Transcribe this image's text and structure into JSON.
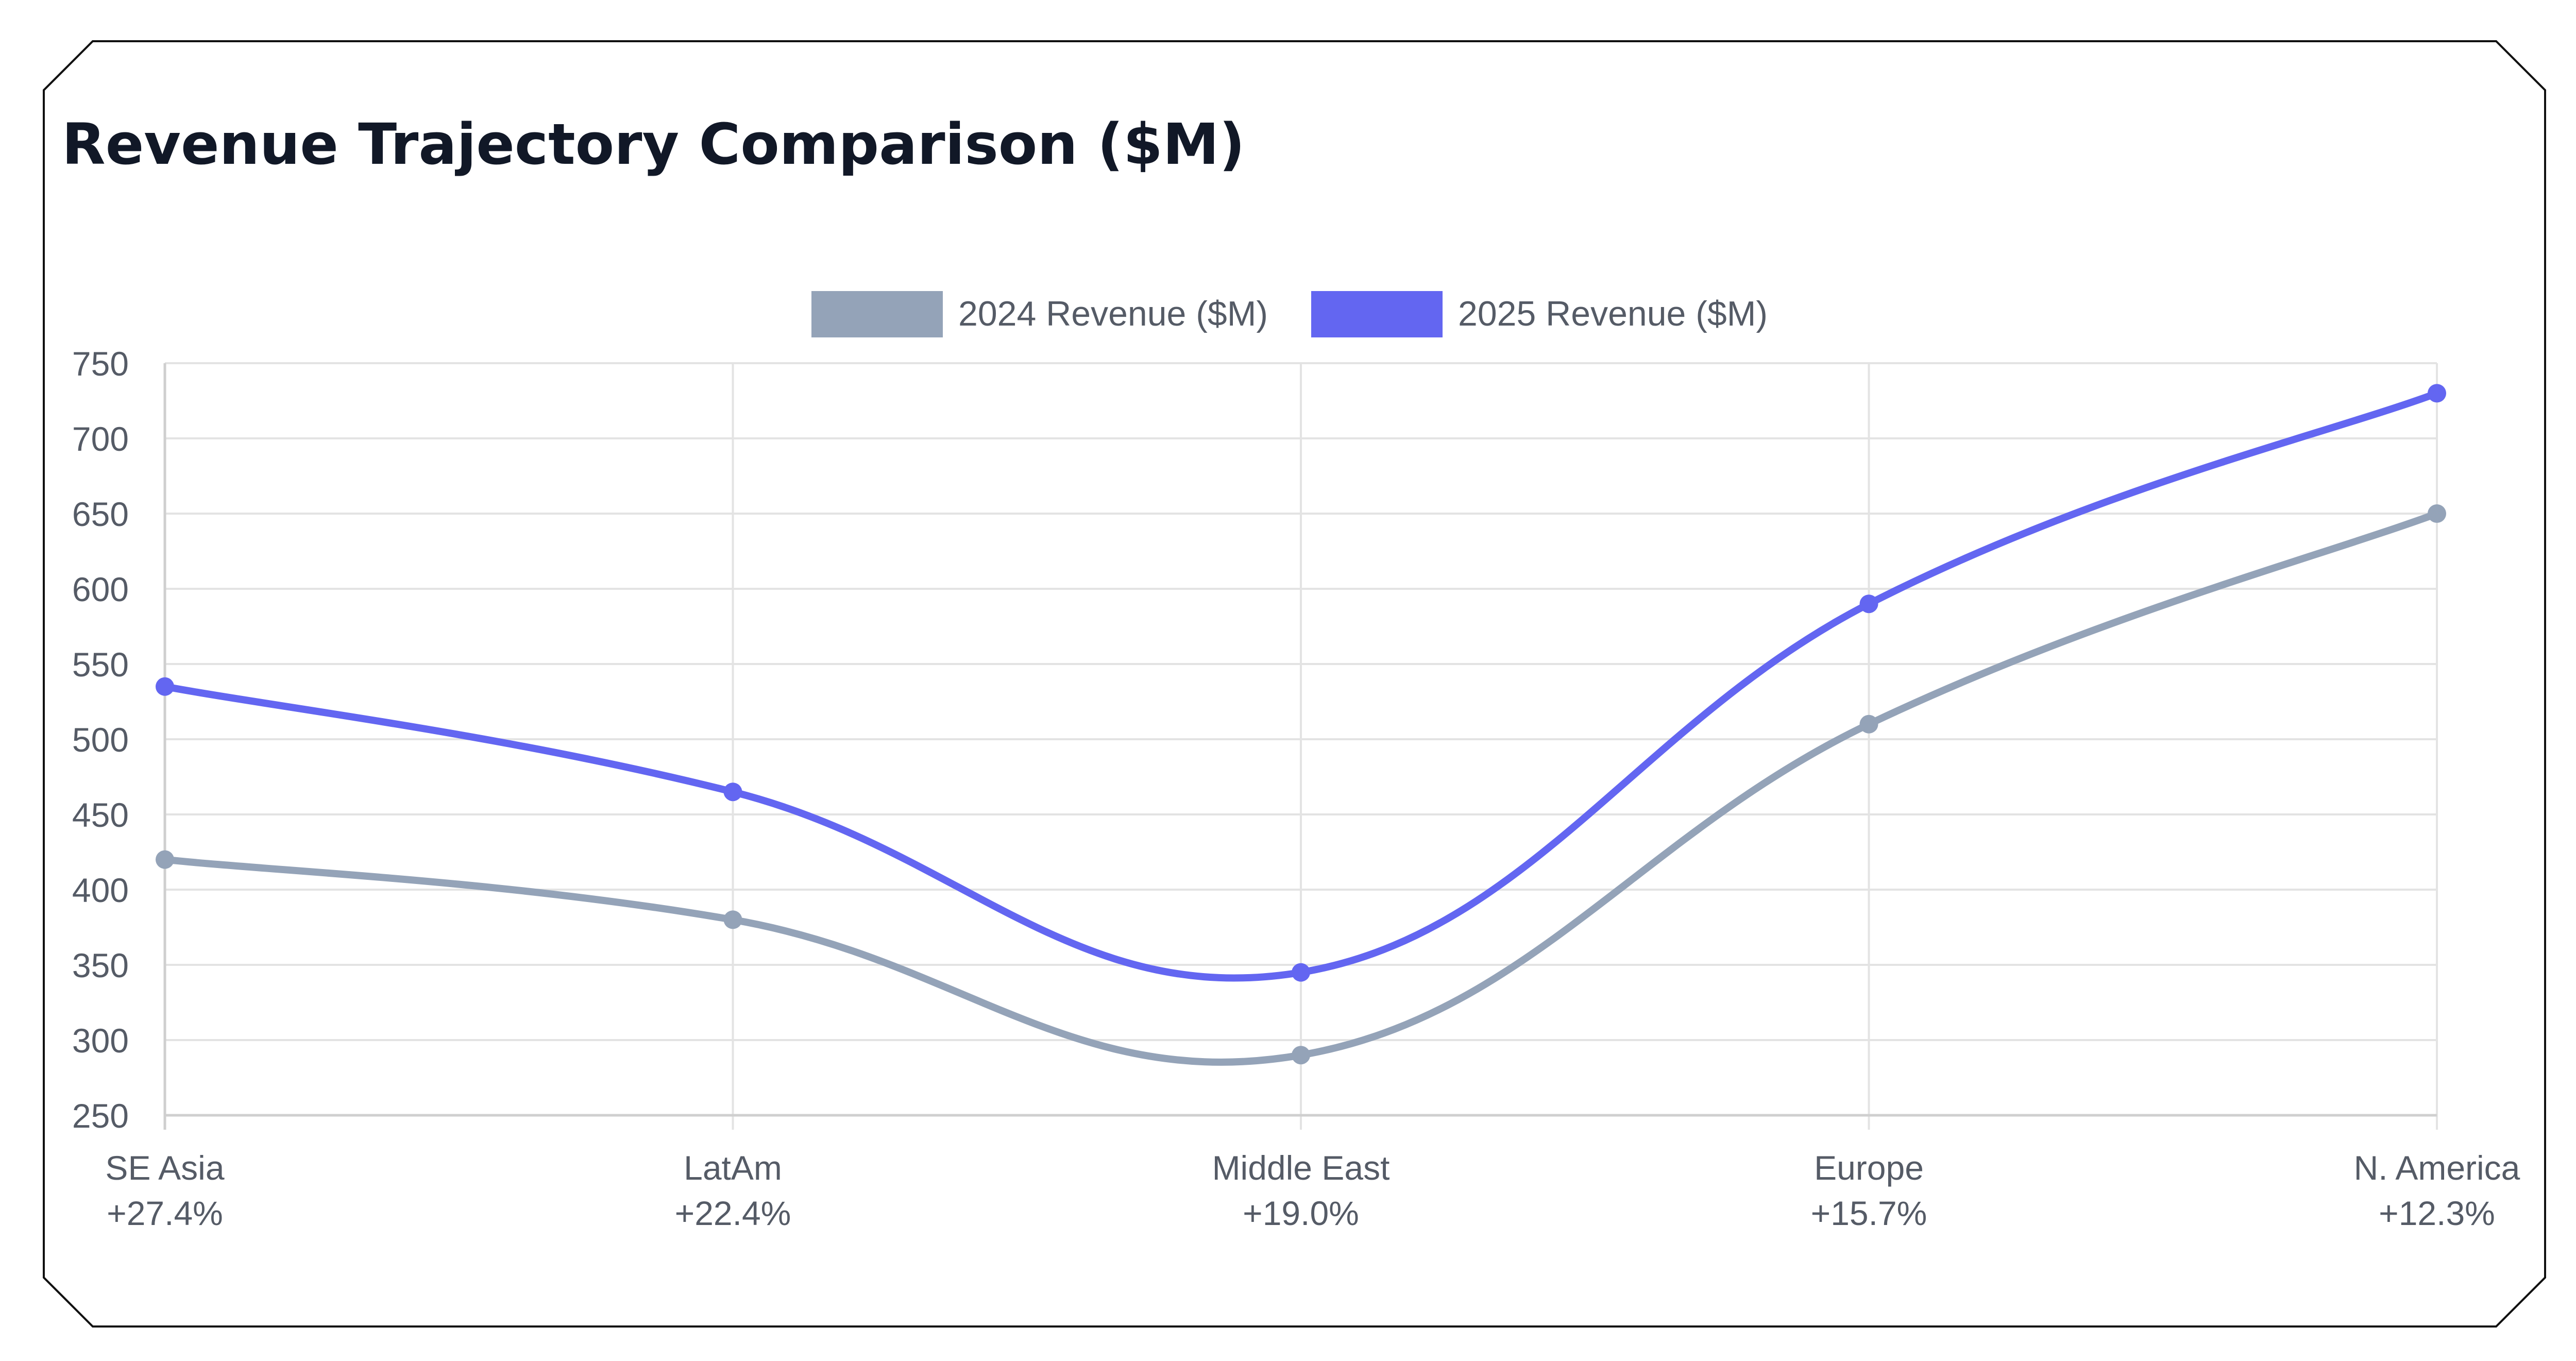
{
  "chart_data": {
    "type": "line",
    "title": "Revenue Trajectory Comparison ($M)",
    "categories": [
      "SE Asia",
      "LatAm",
      "Middle East",
      "Europe",
      "N. America"
    ],
    "category_sublabels": [
      "+27.4%",
      "+22.4%",
      "+19.0%",
      "+15.7%",
      "+12.3%"
    ],
    "series": [
      {
        "name": "2024 Revenue ($M)",
        "values": [
          420,
          380,
          290,
          510,
          650
        ],
        "color": "#94a3b8"
      },
      {
        "name": "2025 Revenue ($M)",
        "values": [
          535,
          465,
          345,
          590,
          730
        ],
        "color": "#6366f1"
      }
    ],
    "xlabel": "",
    "ylabel": "",
    "ylim": [
      250,
      750
    ],
    "yticks": [
      250,
      300,
      350,
      400,
      450,
      500,
      550,
      600,
      650,
      700,
      750
    ],
    "grid": true,
    "legend_position": "top-center",
    "curve": "smooth"
  }
}
